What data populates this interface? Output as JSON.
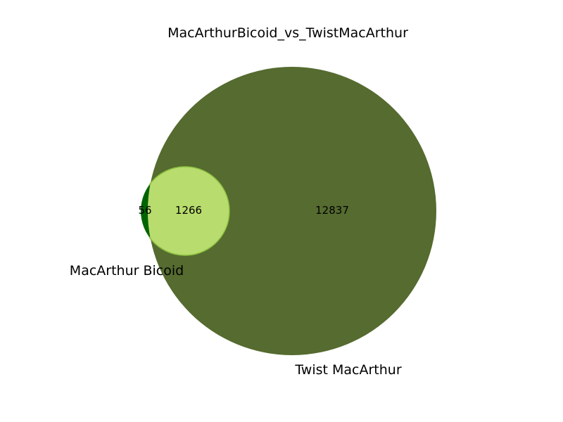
{
  "title": "MacArthurBicoid_vs_TwistMacArthur",
  "sets": [
    {
      "name": "MacArthur Bicoid",
      "color": "#006400"
    },
    {
      "name": "Twist MacArthur",
      "color": "#556b2f"
    }
  ],
  "regions": {
    "only_a": "56",
    "both": "1266",
    "only_b": "12837"
  },
  "overlap_color": "#b8dc6e",
  "overlap_stroke": "#8cbf3f"
}
